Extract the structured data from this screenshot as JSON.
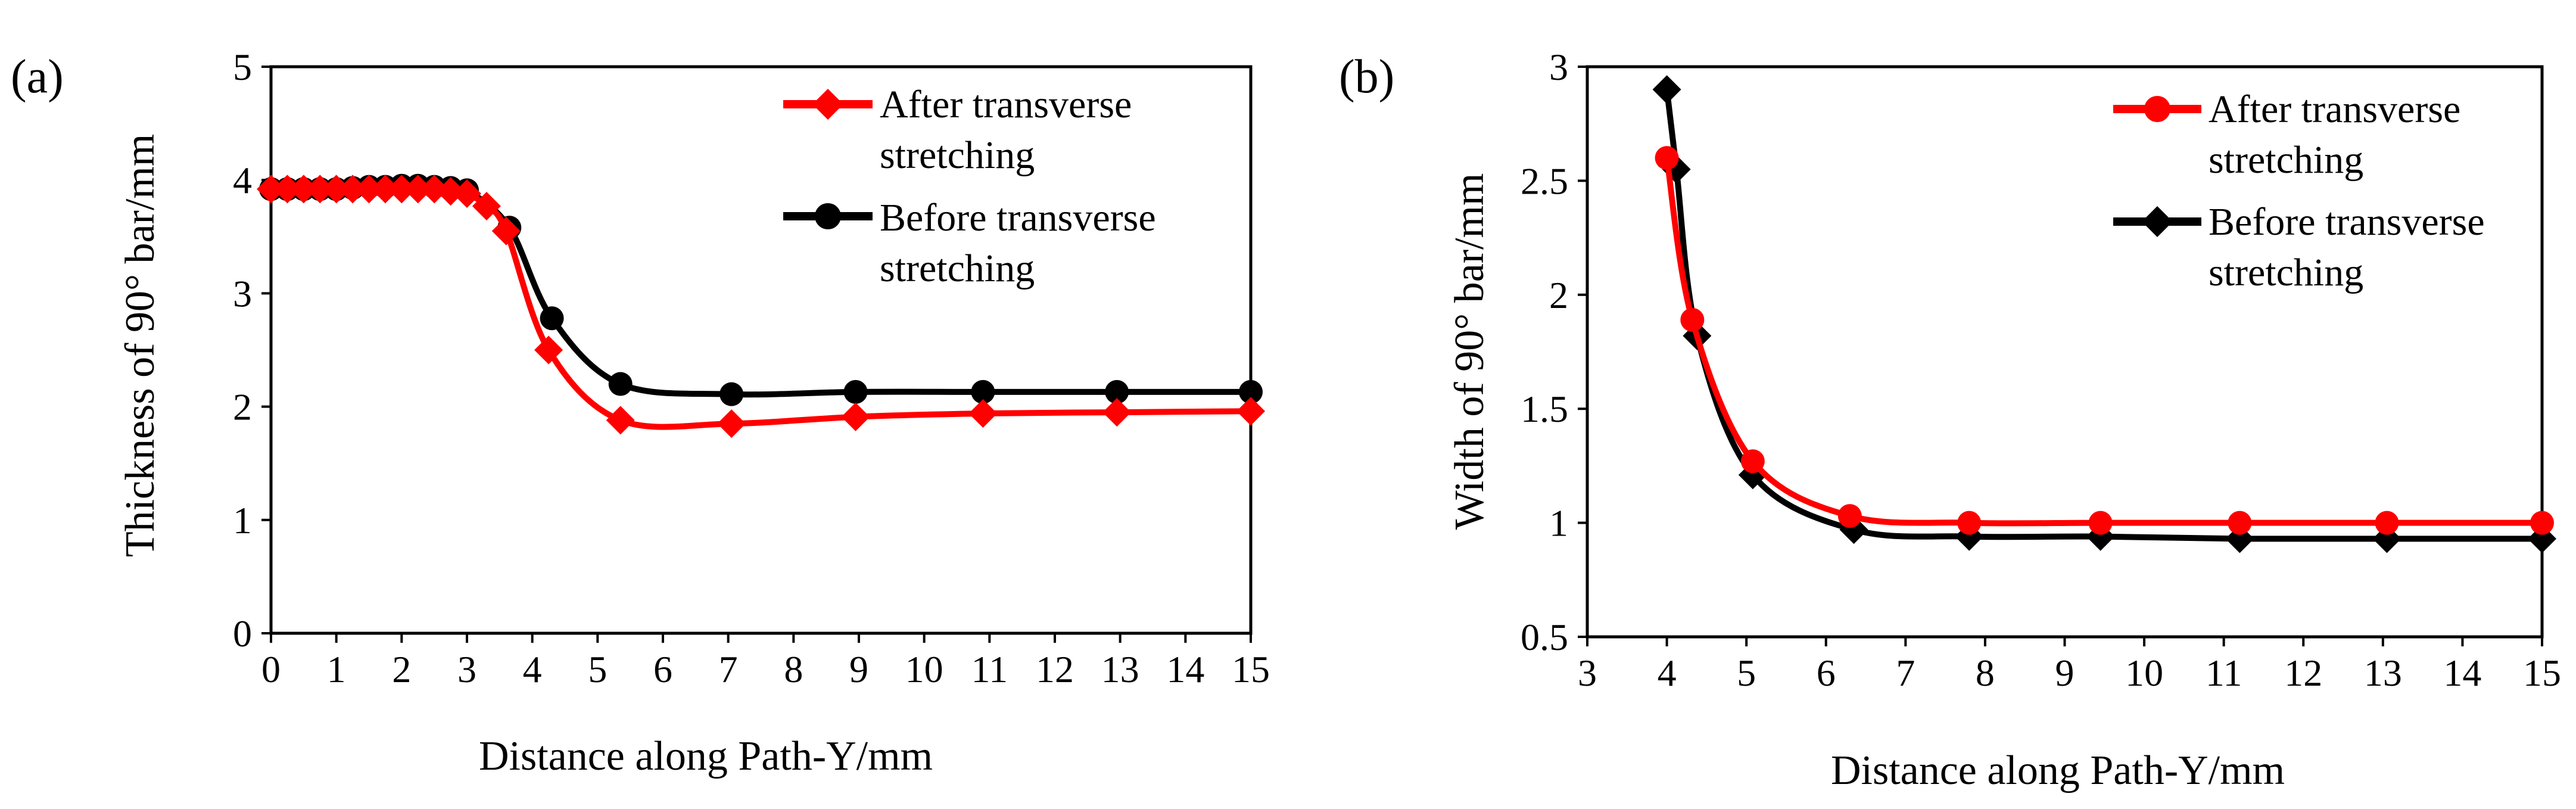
{
  "chart_data": [
    {
      "type": "line",
      "panel_label": "(a)",
      "title": "",
      "xlabel": "Distance along Path-Y/mm",
      "ylabel": "Thickness of 90° bar/mm",
      "xlim": [
        0,
        15
      ],
      "ylim": [
        0,
        5
      ],
      "xticks": [
        "0",
        "1",
        "2",
        "3",
        "4",
        "5",
        "6",
        "7",
        "8",
        "9",
        "10",
        "11",
        "12",
        "13",
        "14",
        "15"
      ],
      "yticks": [
        "0",
        "1",
        "2",
        "3",
        "4",
        "5"
      ],
      "grid": false,
      "legend_position": "top-right",
      "series": [
        {
          "name": "After transverse\nstretching",
          "color": "#ff0000",
          "marker": "diamond",
          "x": [
            0,
            0.25,
            0.5,
            0.75,
            1.0,
            1.25,
            1.5,
            1.75,
            2.0,
            2.25,
            2.5,
            2.75,
            3.0,
            3.3,
            3.6,
            4.25,
            5.35,
            7.05,
            8.95,
            10.9,
            12.95,
            15.0
          ],
          "y": [
            3.92,
            3.92,
            3.92,
            3.92,
            3.92,
            3.92,
            3.92,
            3.92,
            3.92,
            3.92,
            3.92,
            3.9,
            3.88,
            3.77,
            3.55,
            2.5,
            1.88,
            1.85,
            1.91,
            1.94,
            1.95,
            1.96
          ]
        },
        {
          "name": "Before transverse\nstretching",
          "color": "#000000",
          "marker": "circle",
          "x": [
            0,
            0.25,
            0.5,
            0.75,
            1.0,
            1.25,
            1.5,
            1.75,
            2.0,
            2.25,
            2.5,
            2.75,
            3.0,
            3.65,
            4.3,
            5.35,
            7.05,
            8.95,
            10.9,
            12.95,
            15.0
          ],
          "y": [
            3.92,
            3.92,
            3.92,
            3.92,
            3.92,
            3.93,
            3.94,
            3.94,
            3.95,
            3.95,
            3.94,
            3.93,
            3.91,
            3.58,
            2.78,
            2.2,
            2.11,
            2.13,
            2.13,
            2.13,
            2.13
          ]
        }
      ]
    },
    {
      "type": "line",
      "panel_label": "(b)",
      "title": "",
      "xlabel": "Distance along Path-Y/mm",
      "ylabel": "Width of 90° bar/mm",
      "xlim": [
        3,
        15
      ],
      "ylim": [
        0.5,
        3
      ],
      "xticks": [
        "3",
        "4",
        "5",
        "6",
        "7",
        "8",
        "9",
        "10",
        "11",
        "12",
        "13",
        "14",
        "15"
      ],
      "yticks": [
        "0.5",
        "1",
        "1.5",
        "2",
        "2.5",
        "3"
      ],
      "grid": false,
      "legend_position": "top-right",
      "series": [
        {
          "name": "After transverse\nstretching",
          "color": "#ff0000",
          "marker": "circle",
          "x": [
            4.0,
            4.32,
            5.08,
            6.3,
            7.8,
            9.45,
            11.2,
            13.05,
            15.0
          ],
          "y": [
            2.6,
            1.89,
            1.27,
            1.03,
            1.0,
            1.0,
            1.0,
            1.0,
            1.0
          ]
        },
        {
          "name": "Before transverse\nstretching",
          "color": "#000000",
          "marker": "diamond",
          "x": [
            4.0,
            4.12,
            4.38,
            5.08,
            6.35,
            7.8,
            9.45,
            11.2,
            13.05,
            15.0
          ],
          "y": [
            2.9,
            2.55,
            1.82,
            1.21,
            0.97,
            0.94,
            0.94,
            0.93,
            0.93,
            0.93
          ]
        }
      ]
    }
  ]
}
